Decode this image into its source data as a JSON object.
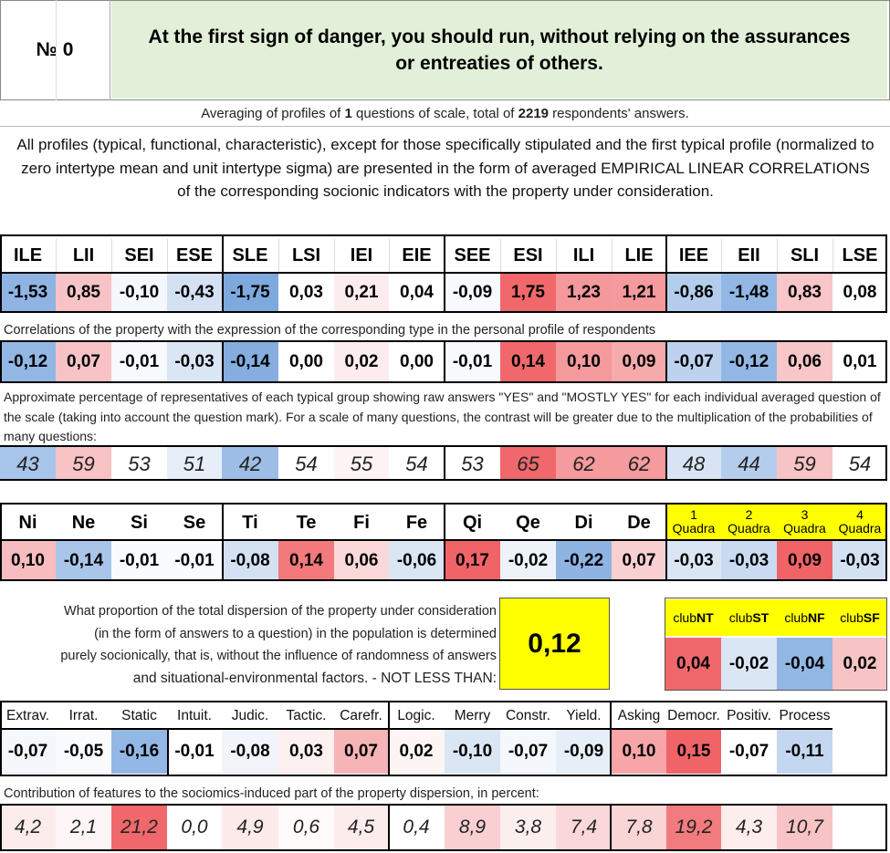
{
  "header": {
    "number_label": "№ 0",
    "title": "At the first sign of danger, you should run, without relying on the assurances or entreaties of others."
  },
  "averaging": {
    "pre": "Averaging of profiles of ",
    "questions": "1",
    "mid": " questions of scale, total of ",
    "respondents": "2219",
    "post": " respondents' answers."
  },
  "intro": "All profiles (typical, functional, characteristic), except for those specifically stipulated and the first typical profile (normalized to zero intertype mean and unit intertype sigma) are presented in the form of averaged EMPIRICAL LINEAR CORRELATIONS of the corresponding socionic indicators with the property under consideration.",
  "types": [
    "ILE",
    "LII",
    "SEI",
    "ESE",
    "SLE",
    "LSI",
    "IEI",
    "EIE",
    "SEE",
    "ESI",
    "ILI",
    "LIE",
    "IEE",
    "EII",
    "SLI",
    "LSE"
  ],
  "typical_profile": [
    "-1,53",
    "0,85",
    "-0,10",
    "-0,43",
    "-1,75",
    "0,03",
    "0,21",
    "0,04",
    "-0,09",
    "1,75",
    "1,23",
    "1,21",
    "-0,86",
    "-1,48",
    "0,83",
    "0,08"
  ],
  "typical_colors": [
    "#8fb4e3",
    "#f7c3c6",
    "#f4f7fc",
    "#d3e1f3",
    "#7ea9df",
    "#ffffff",
    "#fdeced",
    "#ffffff",
    "#f7f9fd",
    "#f0686b",
    "#f4989b",
    "#f49a9d",
    "#b4cdec",
    "#93b7e5",
    "#f8c6c8",
    "#ffffff"
  ],
  "correlation_note": "Correlations of the property with the expression of the corresponding type in the personal profile of respondents",
  "correlations": [
    "-0,12",
    "0,07",
    "-0,01",
    "-0,03",
    "-0,14",
    "0,00",
    "0,02",
    "0,00",
    "-0,01",
    "0,14",
    "0,10",
    "0,09",
    "-0,07",
    "-0,12",
    "0,06",
    "0,01"
  ],
  "correlation_colors": [
    "#93b7e5",
    "#f7c3c6",
    "#f7f9fd",
    "#dbe6f5",
    "#85addf",
    "#ffffff",
    "#fdeced",
    "#ffffff",
    "#f7f9fd",
    "#f0686b",
    "#f49a9d",
    "#f5aaac",
    "#bcd2ee",
    "#93b7e5",
    "#f8c6c8",
    "#ffffff"
  ],
  "percentage_note": "Approximate percentage of representatives of each typical group showing raw answers \"YES\" and \"MOSTLY YES\" for each individual averaged question of the scale (taking into account the question mark). For a scale of many questions, the contrast will be greater due to the multiplication of the probabilities of many questions:",
  "percentages": [
    "43",
    "59",
    "53",
    "51",
    "42",
    "54",
    "55",
    "54",
    "53",
    "65",
    "62",
    "62",
    "48",
    "44",
    "59",
    "54"
  ],
  "percentage_colors": [
    "#a7c4ea",
    "#f8c3c5",
    "#ffffff",
    "#e6eef8",
    "#9dbde7",
    "#ffffff",
    "#fef4f4",
    "#ffffff",
    "#ffffff",
    "#f0686b",
    "#f59a9d",
    "#f59a9d",
    "#d8e4f4",
    "#b4cdec",
    "#f8c3c5",
    "#ffffff"
  ],
  "functions": [
    "Ni",
    "Ne",
    "Si",
    "Se",
    "Ti",
    "Te",
    "Fi",
    "Fe",
    "Qi",
    "Qe",
    "Di",
    "De"
  ],
  "function_values": [
    "0,10",
    "-0,14",
    "-0,01",
    "-0,01",
    "-0,08",
    "0,14",
    "0,06",
    "-0,06",
    "0,17",
    "-0,02",
    "-0,22",
    "0,07"
  ],
  "function_colors": [
    "#f7bcbf",
    "#a9c5ea",
    "#f9fbfe",
    "#f9fbfe",
    "#d3e1f3",
    "#f3797c",
    "#fbd9da",
    "#dbe6f5",
    "#f06468",
    "#eef3fa",
    "#8fb4e3",
    "#f9d0d2"
  ],
  "quadras": [
    {
      "num": "1",
      "label": "Quadra"
    },
    {
      "num": "2",
      "label": "Quadra"
    },
    {
      "num": "3",
      "label": "Quadra"
    },
    {
      "num": "4",
      "label": "Quadra"
    }
  ],
  "quadra_values": [
    "-0,03",
    "-0,03",
    "0,09",
    "-0,03"
  ],
  "quadra_colors": [
    "#dbe6f5",
    "#c9daf1",
    "#f06468",
    "#d3e1f3"
  ],
  "dispersion_note": [
    "What proportion of the total dispersion of the property under consideration",
    "(in the form of answers to a question) in the population is determined",
    "purely socionically, that is, without the influence of randomness of answers",
    "and situational-environmental factors. - NOT LESS THAN:"
  ],
  "dispersion_value": "0,12",
  "clubs": [
    {
      "pre": "club",
      "b": "NT"
    },
    {
      "pre": "club",
      "b": "ST"
    },
    {
      "pre": "club",
      "b": "NF"
    },
    {
      "pre": "club",
      "b": "SF"
    }
  ],
  "club_values": [
    "0,04",
    "-0,02",
    "-0,04",
    "0,02"
  ],
  "club_colors": [
    "#f0686b",
    "#dbe6f5",
    "#93b7e5",
    "#f8c3c5"
  ],
  "features": [
    "Extrav.",
    "Irrat.",
    "Static",
    "Intuit.",
    "Judic.",
    "Tactic.",
    "Carefr.",
    "Logic.",
    "Merry",
    "Constr.",
    "Yield.",
    "Asking",
    "Democr.",
    "Positiv.",
    "Process"
  ],
  "feature_values": [
    "-0,07",
    "-0,05",
    "-0,16",
    "-0,01",
    "-0,08",
    "0,03",
    "0,07",
    "0,02",
    "-0,10",
    "-0,07",
    "-0,09",
    "0,10",
    "0,15",
    "-0,07",
    "-0,11"
  ],
  "feature_colors": [
    "#f4f7fc",
    "#f9fbfe",
    "#93b7e5",
    "#ffffff",
    "#f1f5fb",
    "#fdf0f1",
    "#f7b4b7",
    "#fdf4f4",
    "#dbe6f5",
    "#f4f7fc",
    "#e6eef8",
    "#f7a5a8",
    "#f06468",
    "#ffffff",
    "#c4d7f0"
  ],
  "contribution_note": "Contribution of features to the sociomics-induced part of the property dispersion, in percent:",
  "contributions": [
    "4,2",
    "2,1",
    "21,2",
    "0,0",
    "4,9",
    "0,6",
    "4,5",
    "0,4",
    "8,9",
    "3,8",
    "7,4",
    "7,8",
    "19,2",
    "4,3",
    "10,7"
  ],
  "contribution_colors": [
    "#fdecec",
    "#fef6f6",
    "#f0686b",
    "#ffffff",
    "#fdeaea",
    "#fffbfb",
    "#fdecec",
    "#ffffff",
    "#f9cfd1",
    "#fdeeee",
    "#fad7d8",
    "#fad5d6",
    "#f17b7e",
    "#fdeded",
    "#f8c3c5"
  ]
}
